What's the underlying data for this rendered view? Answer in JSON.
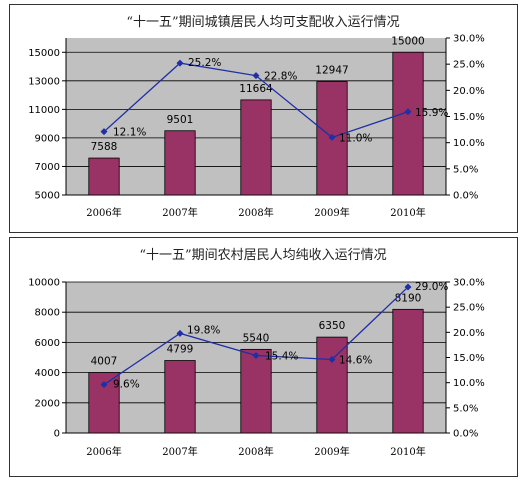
{
  "chart_data": [
    {
      "type": "bar",
      "title": "“十一五”期间城镇居民人均可支配收入运行情况",
      "categories": [
        "2006年",
        "2007年",
        "2008年",
        "2009年",
        "2010年"
      ],
      "series": [
        {
          "values": [
            7588,
            9501,
            11664,
            12947,
            15000
          ]
        },
        {
          "type": "line",
          "axis": "right",
          "values": [
            12.1,
            25.2,
            22.8,
            11.0,
            15.9
          ],
          "labels": [
            "12.1%",
            "25.2%",
            "22.8%",
            "11.0%",
            "15.9%"
          ]
        }
      ],
      "ylim": [
        5000,
        16000
      ],
      "y_ticks": [
        "15000",
        "13000",
        "11000",
        "9000",
        "7000",
        "5000"
      ],
      "y2lim": [
        0,
        30
      ],
      "y2_ticks": [
        "30.0%",
        "25.0%",
        "20.0%",
        "15.0%",
        "10.0%",
        "5.0%",
        "0.0%"
      ],
      "grid": true,
      "colors": {
        "bar": "#993366",
        "line": "#1f2fa6",
        "plot_bg": "#c0c0c0"
      }
    },
    {
      "type": "bar",
      "title": "“十一五”期间农村居民人均纯收入运行情况",
      "categories": [
        "2006年",
        "2007年",
        "2008年",
        "2009年",
        "2010年"
      ],
      "series": [
        {
          "values": [
            4007,
            4799,
            5540,
            6350,
            8190
          ]
        },
        {
          "type": "line",
          "axis": "right",
          "values": [
            9.6,
            19.8,
            15.4,
            14.6,
            29.0
          ],
          "labels": [
            "9.6%",
            "19.8%",
            "15.4%",
            "14.6%",
            "29.0%"
          ]
        }
      ],
      "ylim": [
        0,
        10000
      ],
      "y_ticks": [
        "10000",
        "8000",
        "6000",
        "4000",
        "2000",
        "0"
      ],
      "y2lim": [
        0,
        30
      ],
      "y2_ticks": [
        "30.0%",
        "25.0%",
        "20.0%",
        "15.0%",
        "10.0%",
        "5.0%",
        "0.0%"
      ],
      "grid": true,
      "colors": {
        "bar": "#993366",
        "line": "#1f2fa6",
        "plot_bg": "#c0c0c0"
      }
    }
  ]
}
